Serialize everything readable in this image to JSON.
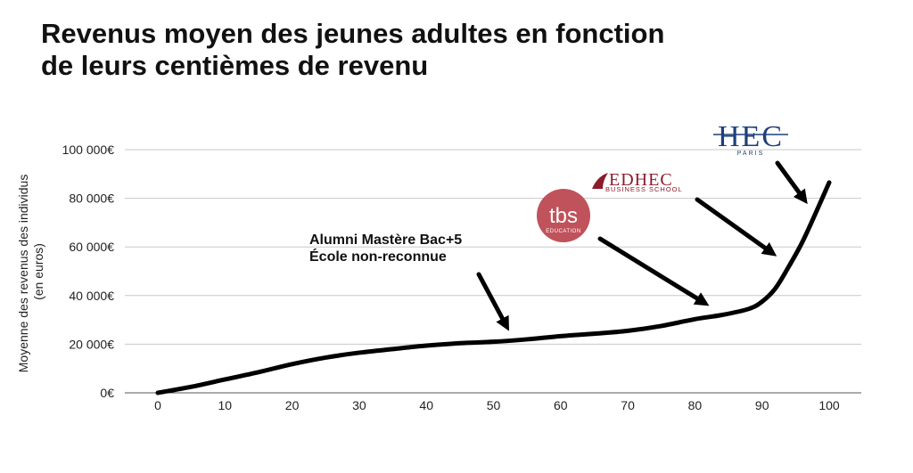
{
  "chart_data": {
    "type": "line",
    "title_line1": "Revenus moyen des jeunes adultes en fonction",
    "title_line2": "de leurs centièmes de revenu",
    "ylabel_line1": "Moyenne des revenus des individus",
    "ylabel_line2": "(en euros)",
    "xlim": [
      0,
      100
    ],
    "ylim": [
      0,
      100000
    ],
    "x_ticks": [
      0,
      10,
      20,
      30,
      40,
      50,
      60,
      70,
      80,
      90,
      100
    ],
    "x_tick_labels": [
      "0",
      "10",
      "20",
      "30",
      "40",
      "50",
      "60",
      "70",
      "80",
      "90",
      "100"
    ],
    "y_ticks": [
      0,
      20000,
      40000,
      60000,
      80000,
      100000
    ],
    "y_tick_labels": [
      "0€",
      "20 000€",
      "40 000€",
      "60 000€",
      "80 000€",
      "100 000€"
    ],
    "grid": "horizontal",
    "series": [
      {
        "x": [
          0,
          5,
          10,
          15,
          20,
          25,
          30,
          35,
          40,
          45,
          50,
          55,
          60,
          65,
          70,
          75,
          80,
          84,
          88,
          90,
          92,
          94,
          96,
          98,
          100
        ],
        "y": [
          0,
          2500,
          5500,
          8500,
          11800,
          14500,
          16500,
          18000,
          19400,
          20400,
          21000,
          22000,
          23300,
          24300,
          25500,
          27500,
          30300,
          32000,
          34500,
          37500,
          43000,
          52000,
          62000,
          74000,
          86500
        ]
      }
    ],
    "annotations": [
      {
        "line1": "Alumni Mastère Bac+5",
        "line2": "École non-reconnue",
        "target_x": 52,
        "target_y": 25500
      },
      {
        "logo": "tbs-logo",
        "text": "tbs",
        "subtext": "EDUCATION",
        "color": "#c0525b",
        "target_x": 82,
        "target_y": 36000
      },
      {
        "logo": "edhec-logo",
        "text": "EDHEC",
        "subtext": "BUSINESS SCHOOL",
        "color": "#8a1c2b",
        "target_x": 92.5,
        "target_y": 56000
      },
      {
        "logo": "hec-logo",
        "text": "HEC",
        "subtext": "PARIS",
        "color": "#1f3f7a",
        "target_x": 97.5,
        "target_y": 77000
      }
    ]
  }
}
